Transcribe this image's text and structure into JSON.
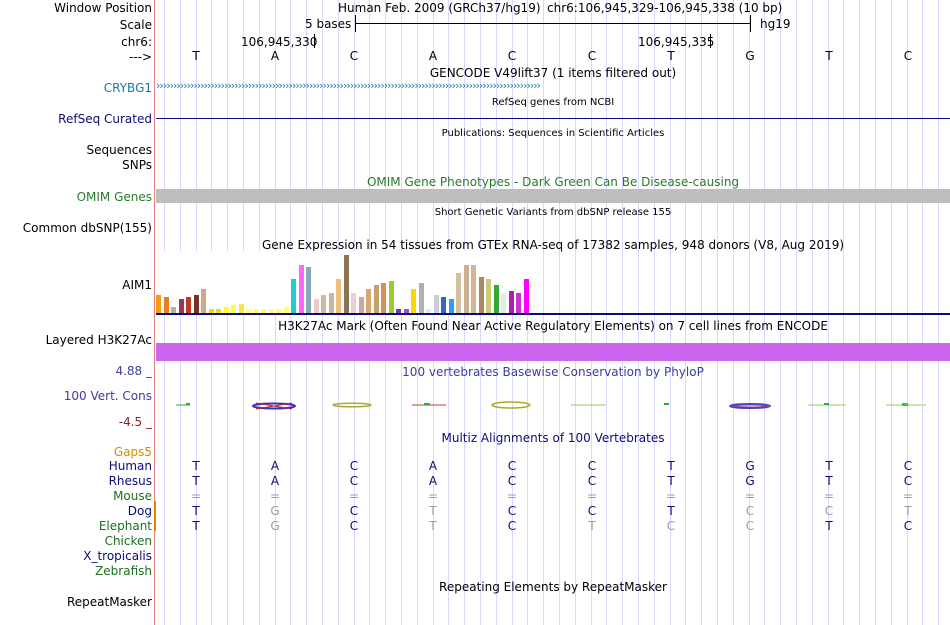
{
  "header": {
    "window_position_label": "Window Position",
    "scale_label": "Scale",
    "chrom_label": "chr6:",
    "strand_label": "--->",
    "assembly_title": "Human Feb. 2009 (GRCh37/hg19)",
    "position": "chr6:106,945,329-106,945,338 (10 bp)",
    "scale_text": "5 bases",
    "db": "hg19",
    "tick1": "106,945,330",
    "tick2": "106,945,335"
  },
  "bases": [
    "T",
    "A",
    "C",
    "A",
    "C",
    "C",
    "T",
    "G",
    "T",
    "C"
  ],
  "tracks": {
    "gencode_title": "GENCODE V49lift37 (1 items filtered out)",
    "gene_label": "CRYBG1",
    "gene_chevrons": "›››››››››››››››››››››››››››››››››››››››››››››››››››››››››››››››››››››››››››››››››››››››››››››››››››››››››››››››››",
    "refseq_title": "RefSeq genes from NCBI",
    "refseq_label": "RefSeq Curated",
    "pubs_title": "Publications: Sequences in Scientific Articles",
    "sequences_label": "Sequences",
    "snps_label": "SNPs",
    "omim_title": "OMIM Gene Phenotypes - Dark Green Can Be Disease-causing",
    "omim_label": "OMIM Genes",
    "dbsnp_title": "Short Genetic Variants from dbSNP release 155",
    "dbsnp_label": "Common dbSNP(155)",
    "gtex_title": "Gene Expression in 54 tissues from GTEx RNA-seq of 17382 samples, 948 donors (V8, Aug 2019)",
    "gtex_label": "AIM1",
    "h3k27ac_title": "H3K27Ac Mark (Often Found Near Active Regulatory Elements) on 7 cell lines from ENCODE",
    "h3k27ac_label": "Layered H3K27Ac",
    "phylop_title": "100 vertebrates Basewise Conservation by PhyloP",
    "phylop_label": "100 Vert. Cons",
    "phylop_max": "4.88 _",
    "phylop_min": "-4.5 _",
    "multiz_title": "Multiz Alignments of 100 Vertebrates",
    "gaps_label": "Gaps5",
    "repeat_title": "Repeating Elements by RepeatMasker",
    "repeat_label": "RepeatMasker"
  },
  "colors": {
    "gene": "#1a78a8",
    "refseq": "#0c0c78",
    "omim": "#2a7a2a",
    "omim_bar": "#bebebe",
    "h3k27ac": "#cc66ee",
    "phylop_label": "#3d3d9e",
    "phylop_min": "#8b2323",
    "gaps": "#d68c00",
    "species": "#0c0c78",
    "species_green": "#1f6e1f",
    "grid": "#d9d9ff",
    "divider": "#e08080"
  },
  "gtex_values": [
    18,
    16,
    6,
    14,
    16,
    18,
    24,
    4,
    4,
    6,
    8,
    9,
    4,
    4,
    4,
    4,
    4,
    6,
    34,
    48,
    46,
    14,
    18,
    20,
    34,
    58,
    20,
    16,
    24,
    28,
    30,
    32,
    4,
    4,
    24,
    30,
    4,
    18,
    16,
    14,
    40,
    48,
    48,
    36,
    34,
    28,
    20,
    22,
    20,
    34
  ],
  "gtex_colors": [
    "#f39c12",
    "#e67e22",
    "#b0b0b0",
    "#a8325a",
    "#c0392b",
    "#7b2d26",
    "#cfa886",
    "#ffd700",
    "#ffd700",
    "#ffff33",
    "#ffff33",
    "#f5e642",
    "#ffff66",
    "#ffff66",
    "#ffff66",
    "#ffff66",
    "#ffff66",
    "#ffff66",
    "#22cccc",
    "#ff66ff",
    "#88aabb",
    "#e8c9c9",
    "#d4b5a0",
    "#c9b8a0",
    "#f0c080",
    "#8b7355",
    "#e8d0d8",
    "#d8a0a0",
    "#d4a870",
    "#c8a070",
    "#d09060",
    "#99cc33",
    "#7733aa",
    "#9955bb",
    "#ffd700",
    "#b0b0b0",
    "#e8e8e8",
    "#ccccdd",
    "#3366cc",
    "#3399ff",
    "#d0c0a0",
    "#c8b090",
    "#d4b596",
    "#a88866",
    "#cccc77",
    "#33aa33",
    "#e8e8e8",
    "#aa22aa",
    "#cc33cc",
    "#ff00ff"
  ],
  "species": [
    {
      "name": "Human",
      "bases": [
        "T",
        "A",
        "C",
        "A",
        "C",
        "C",
        "T",
        "G",
        "T",
        "C"
      ],
      "dim": [
        false,
        false,
        false,
        false,
        false,
        false,
        false,
        false,
        false,
        false
      ],
      "color": "species"
    },
    {
      "name": "Rhesus",
      "bases": [
        "T",
        "A",
        "C",
        "A",
        "C",
        "C",
        "T",
        "G",
        "T",
        "C"
      ],
      "dim": [
        false,
        false,
        false,
        false,
        false,
        false,
        false,
        false,
        false,
        false
      ],
      "color": "species"
    },
    {
      "name": "Mouse",
      "bases": [
        "=",
        "=",
        "=",
        "=",
        "=",
        "=",
        "=",
        "=",
        "=",
        "="
      ],
      "dim": [
        true,
        true,
        true,
        true,
        true,
        true,
        true,
        true,
        true,
        true
      ],
      "color": "species_green"
    },
    {
      "name": "Dog",
      "bases": [
        "T",
        "G",
        "C",
        "T",
        "C",
        "C",
        "T",
        "C",
        "C",
        "T"
      ],
      "dim": [
        false,
        true,
        false,
        true,
        false,
        false,
        false,
        true,
        true,
        true
      ],
      "color": "species"
    },
    {
      "name": "Elephant",
      "bases": [
        "T",
        "G",
        "C",
        "T",
        "C",
        "T",
        "C",
        "C",
        "T",
        "C"
      ],
      "dim": [
        false,
        true,
        false,
        true,
        false,
        true,
        true,
        true,
        false,
        false
      ],
      "color": "species_green"
    },
    {
      "name": "Chicken",
      "bases": [],
      "dim": [],
      "color": "species_green"
    },
    {
      "name": "X_tropicalis",
      "bases": [],
      "dim": [],
      "color": "species"
    },
    {
      "name": "Zebrafish",
      "bases": [],
      "dim": [],
      "color": "species_green"
    }
  ]
}
